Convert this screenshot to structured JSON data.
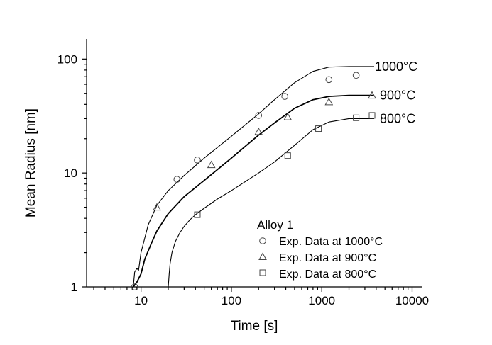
{
  "chart_data": {
    "type": "scatter",
    "xlabel": "Time [s]",
    "ylabel": "Mean Radius [nm]",
    "xscale": "log",
    "yscale": "log",
    "xlim": [
      2.5,
      13000
    ],
    "ylim": [
      1,
      150
    ],
    "x_ticks": [
      10,
      100,
      1000,
      10000
    ],
    "x_tick_labels": [
      "10",
      "100",
      "1000",
      "10000"
    ],
    "y_ticks": [
      1,
      10,
      100
    ],
    "y_tick_labels": [
      "1",
      "10",
      "100"
    ],
    "grid": false,
    "legend": {
      "placement": "bottom-right",
      "title": "Alloy 1",
      "entries": [
        "Exp. Data at 1000°C",
        "Exp. Data at 900°C",
        "Exp. Data at 800°C"
      ]
    },
    "model_series": [
      {
        "name": "1000°C",
        "x": [
          8.2,
          8.5,
          9.0,
          9.4,
          10,
          12,
          15,
          20,
          30,
          50,
          100,
          200,
          300,
          500,
          800,
          1200,
          2000,
          3000,
          3800
        ],
        "y": [
          1.0,
          1.35,
          1.45,
          1.4,
          2.0,
          3.5,
          5.2,
          7.0,
          9.5,
          13.5,
          21,
          33,
          44,
          62,
          78,
          85,
          86,
          86,
          86
        ]
      },
      {
        "name": "900°C",
        "x": [
          8.2,
          9.0,
          9.5,
          10,
          11,
          13,
          15,
          20,
          30,
          50,
          100,
          200,
          300,
          500,
          800,
          1200,
          2000,
          3000,
          3800
        ],
        "y": [
          1.0,
          1.1,
          1.2,
          1.3,
          1.75,
          2.4,
          3.1,
          4.4,
          6.2,
          8.6,
          13.5,
          21.5,
          27.5,
          37,
          44,
          47,
          48,
          48,
          48
        ]
      },
      {
        "name": "800°C",
        "x": [
          20,
          20.5,
          21,
          22,
          24,
          27,
          30,
          35,
          40,
          50,
          70,
          100,
          200,
          300,
          500,
          800,
          1200,
          2000,
          3000,
          3800
        ],
        "y": [
          1.0,
          1.3,
          1.6,
          2.0,
          2.5,
          3.0,
          3.4,
          3.9,
          4.3,
          4.9,
          5.9,
          7.0,
          10.0,
          12.5,
          17.5,
          24,
          28,
          30,
          30,
          30
        ]
      }
    ],
    "series": [
      {
        "name": "Exp. Data at 1000°C",
        "marker": "circle",
        "x": [
          8.5,
          25,
          42,
          200,
          390,
          1200,
          2400
        ],
        "y": [
          1.0,
          8.8,
          13,
          32,
          47,
          66,
          72
        ]
      },
      {
        "name": "Exp. Data at 900°C",
        "marker": "triangle",
        "x": [
          15,
          60,
          200,
          420,
          1200,
          3600
        ],
        "y": [
          5,
          11.8,
          23,
          31,
          42,
          48
        ]
      },
      {
        "name": "Exp. Data at 800°C",
        "marker": "square",
        "x": [
          42,
          420,
          920,
          2400,
          3600
        ],
        "y": [
          4.3,
          14.2,
          24.5,
          30.5,
          32
        ]
      }
    ]
  }
}
